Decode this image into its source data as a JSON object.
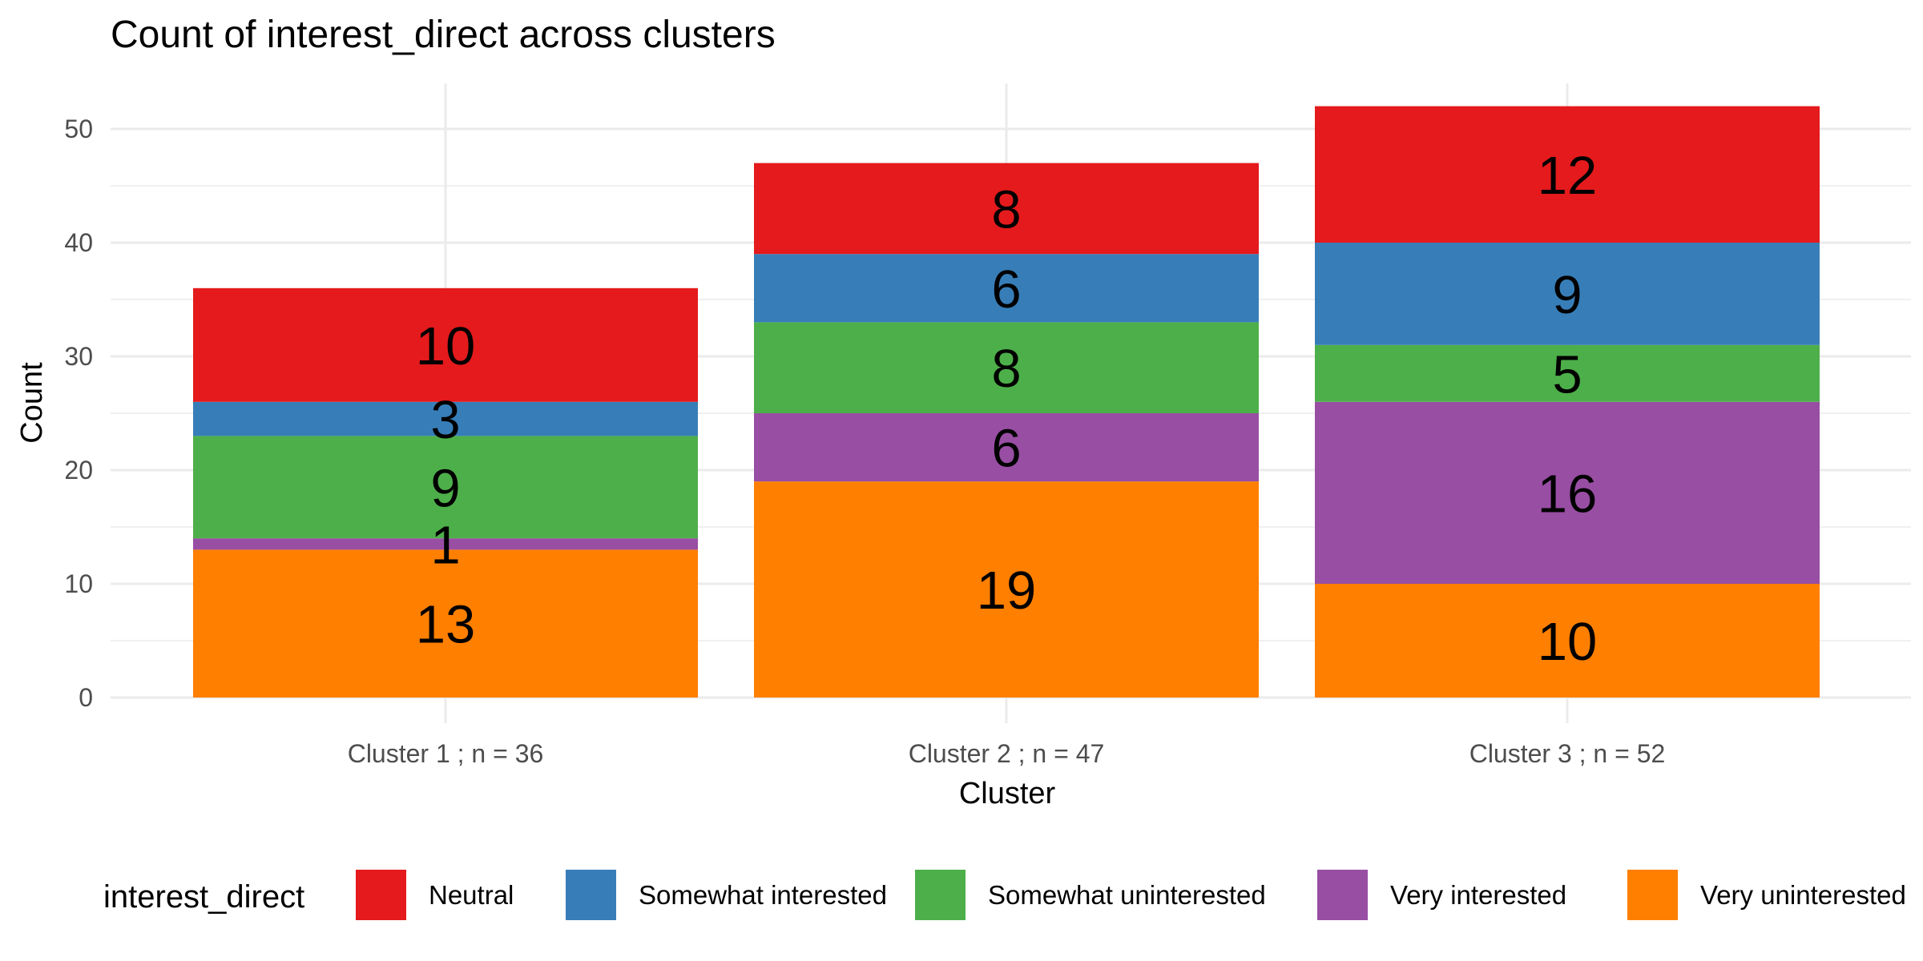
{
  "chart_data": {
    "type": "bar",
    "stacked": true,
    "title": "Count of interest_direct across clusters",
    "xlabel": "Cluster",
    "ylabel": "Count",
    "categories": [
      "Cluster 1 ; n = 36",
      "Cluster 2 ; n = 47",
      "Cluster 3 ; n = 52"
    ],
    "ylim": [
      0,
      54
    ],
    "yticks": [
      0,
      10,
      20,
      30,
      40,
      50
    ],
    "grid": true,
    "legend": {
      "title": "interest_direct",
      "position": "bottom"
    },
    "series": [
      {
        "name": "Very uninterested",
        "color": "#FF7F00",
        "values": [
          13,
          19,
          10
        ]
      },
      {
        "name": "Very interested",
        "color": "#984EA3",
        "values": [
          1,
          6,
          16
        ]
      },
      {
        "name": "Somewhat uninterested",
        "color": "#4DAF4A",
        "values": [
          9,
          8,
          5
        ]
      },
      {
        "name": "Somewhat interested",
        "color": "#377EB8",
        "values": [
          3,
          6,
          9
        ]
      },
      {
        "name": "Neutral",
        "color": "#E41A1C",
        "values": [
          10,
          8,
          12
        ]
      }
    ],
    "legend_order": [
      "Neutral",
      "Somewhat interested",
      "Somewhat uninterested",
      "Very interested",
      "Very uninterested"
    ]
  }
}
